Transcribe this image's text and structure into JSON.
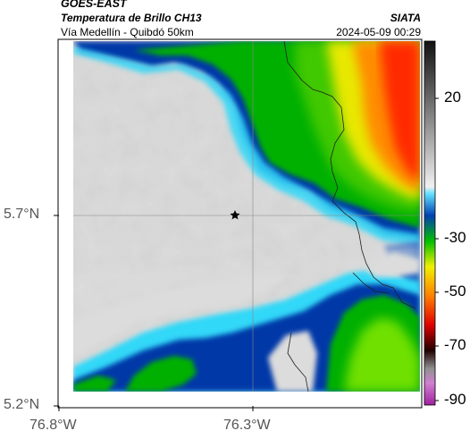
{
  "header": {
    "satellite": "GOES-EAST",
    "product": "Temperatura de Brillo CH13",
    "region": "Vía Medellín - Quibdó 50km",
    "source": "SIATA",
    "datetime": "2024-05-09 00:29"
  },
  "axes": {
    "y_ticks": [
      "5.7°N",
      "5.2°N"
    ],
    "x_ticks": [
      "76.8°W",
      "76.3°W"
    ]
  },
  "colorbar": {
    "ticks": [
      "20",
      "-30",
      "-50",
      "-70",
      "-90"
    ]
  },
  "colors": {
    "gray_light": "#e2e2e2",
    "cyan": "#00c8f0",
    "blue": "#0030a0",
    "green": "#00b400",
    "yellow": "#f0f000",
    "orange": "#ff8c00",
    "red": "#ff2000"
  }
}
